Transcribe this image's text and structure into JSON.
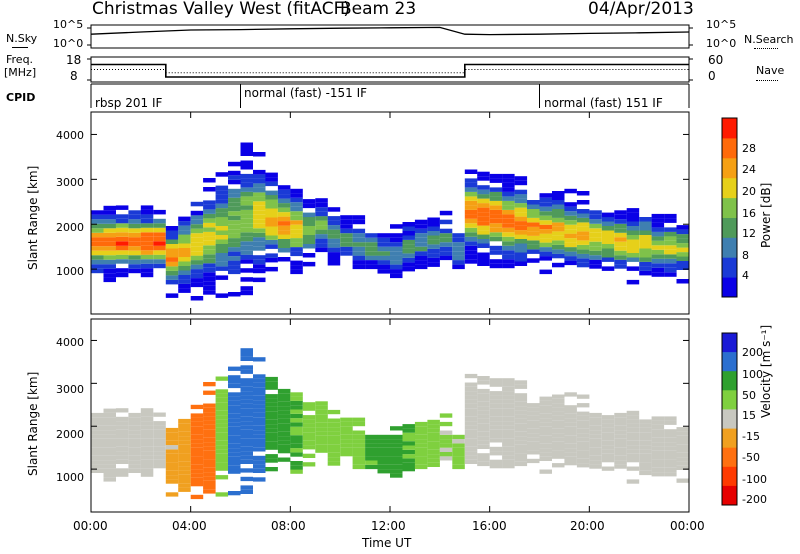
{
  "header": {
    "station": "Christmas Valley West (fitACF)",
    "beam": "Beam 23",
    "date": "04/Apr/2013"
  },
  "top_panels": {
    "noise_label_left": "N.Sky",
    "noise_label_right": "N.Search",
    "noise_ticks_left": [
      "10^5",
      "10^0"
    ],
    "noise_ticks_right": [
      "10^5",
      "10^0"
    ],
    "freq_label_line1": "Freq.",
    "freq_label_line2": "[MHz]",
    "freq_ticks": [
      "18",
      "8"
    ],
    "nave_label": "Nave",
    "nave_ticks": [
      "60",
      "0"
    ],
    "cpid_label": "CPID",
    "cpid_segments": [
      {
        "label": "rbsp 201 IF",
        "start_hour": 0,
        "end_hour": 6
      },
      {
        "label": "normal (fast) -151 IF",
        "start_hour": 6,
        "end_hour": 18
      },
      {
        "label": "normal (fast) 151 IF",
        "start_hour": 18,
        "end_hour": 24
      }
    ]
  },
  "panels": {
    "ylabel": "Slant Range [km]",
    "xlabel": "Time UT",
    "yticks": [
      "1000",
      "2000",
      "3000",
      "4000"
    ],
    "xticks": [
      "00:00",
      "04:00",
      "08:00",
      "12:00",
      "16:00",
      "20:00",
      "00:00"
    ],
    "power_label": "Power [dB]",
    "power_ticks": [
      "4",
      "8",
      "12",
      "16",
      "20",
      "24",
      "28"
    ],
    "velocity_label": "Velocity [m s⁻¹]",
    "velocity_ticks": [
      "200",
      "100",
      "50",
      "15",
      "-15",
      "-50",
      "-100",
      "-200"
    ]
  },
  "colors": {
    "power": [
      "#0a00e6",
      "#1a3ad6",
      "#3f7fb0",
      "#4f9a5a",
      "#7fc24a",
      "#e6d01a",
      "#f5a014",
      "#ff6a0a",
      "#ff1a00"
    ],
    "velocity": [
      "#1a1ad6",
      "#2b6fcf",
      "#2fa02f",
      "#7fd03f",
      "#c8c8c0",
      "#f0a020",
      "#ff7010",
      "#ff3a00",
      "#e60000"
    ]
  },
  "chart_data": [
    {
      "type": "line",
      "title": "",
      "xlabel": "",
      "ylabel": "N.Sky / N.Search",
      "x_range_hours": [
        0,
        24
      ],
      "yscale": "log",
      "ylim": [
        1,
        100000
      ],
      "series": [
        {
          "name": "N.Sky",
          "x": [
            0,
            2,
            4,
            6,
            8,
            10,
            12,
            14,
            15,
            16,
            18,
            20,
            22,
            24
          ],
          "values": [
            1000,
            3000,
            8000,
            10000,
            15000,
            20000,
            25000,
            30000,
            1000,
            800,
            1000,
            1500,
            2000,
            3000
          ]
        }
      ]
    },
    {
      "type": "line",
      "title": "",
      "xlabel": "",
      "ylabel": "Freq. [MHz]",
      "x_range_hours": [
        0,
        24
      ],
      "ylim": [
        8,
        18
      ],
      "series": [
        {
          "name": "Freq.",
          "x": [
            0,
            3,
            3,
            15,
            15,
            24
          ],
          "values": [
            15,
            15,
            10,
            10,
            15,
            15
          ]
        },
        {
          "name": "Nave",
          "x": [
            0,
            3,
            3,
            15,
            15,
            24
          ],
          "values": [
            30,
            30,
            22,
            22,
            30,
            30
          ]
        }
      ]
    },
    {
      "type": "heatmap",
      "title": "",
      "xlabel": "",
      "ylabel": "Slant Range [km]",
      "colorbar_label": "Power [dB]",
      "x_range_hours": [
        0,
        24
      ],
      "ylim": [
        0,
        4500
      ],
      "color_range": [
        0,
        32
      ],
      "x": [
        0.0,
        0.5,
        1.0,
        1.5,
        2.0,
        2.5,
        3.0,
        3.5,
        4.0,
        4.5,
        5.0,
        5.5,
        6.0,
        6.5,
        7.0,
        7.5,
        8.0,
        8.5,
        9.0,
        9.5,
        10.0,
        10.5,
        11.0,
        11.5,
        12.0,
        12.5,
        13.0,
        13.5,
        14.0,
        14.5,
        15.0,
        15.5,
        16.0,
        16.5,
        17.0,
        17.5,
        18.0,
        18.5,
        19.0,
        19.5,
        20.0,
        20.5,
        21.0,
        21.5,
        22.0,
        22.5,
        23.0,
        23.5
      ],
      "band_center_km": [
        1550,
        1550,
        1560,
        1550,
        1560,
        1560,
        1200,
        1350,
        1500,
        1650,
        1800,
        1950,
        2100,
        2150,
        2050,
        1950,
        1850,
        1800,
        1900,
        1700,
        1600,
        1500,
        1400,
        1300,
        1300,
        1450,
        1500,
        1550,
        1600,
        1400,
        2200,
        2150,
        2100,
        2000,
        1950,
        1900,
        1850,
        1800,
        1750,
        1700,
        1650,
        1600,
        1550,
        1500,
        1500,
        1450,
        1450,
        1400
      ],
      "band_peak_db": [
        28,
        28,
        28,
        28,
        28,
        28,
        26,
        22,
        20,
        20,
        18,
        16,
        16,
        20,
        22,
        24,
        22,
        16,
        14,
        12,
        12,
        12,
        12,
        10,
        10,
        12,
        12,
        12,
        12,
        10,
        26,
        28,
        28,
        26,
        26,
        24,
        24,
        22,
        22,
        22,
        20,
        20,
        20,
        20,
        20,
        18,
        18,
        18
      ],
      "band_halfwidth_km": [
        350,
        350,
        350,
        350,
        350,
        350,
        350,
        450,
        500,
        550,
        600,
        650,
        700,
        600,
        500,
        450,
        400,
        350,
        300,
        300,
        250,
        250,
        250,
        250,
        250,
        250,
        250,
        250,
        250,
        250,
        450,
        450,
        450,
        450,
        450,
        400,
        400,
        400,
        400,
        400,
        350,
        350,
        350,
        350,
        350,
        300,
        300,
        300
      ]
    },
    {
      "type": "heatmap",
      "title": "",
      "xlabel": "Time UT",
      "ylabel": "Slant Range [km]",
      "colorbar_label": "Velocity [m s⁻¹]",
      "x_range_hours": [
        0,
        24
      ],
      "ylim": [
        0,
        4500
      ],
      "color_range": [
        -200,
        200
      ],
      "x": [
        0.0,
        0.5,
        1.0,
        1.5,
        2.0,
        2.5,
        3.0,
        3.5,
        4.0,
        4.5,
        5.0,
        5.5,
        6.0,
        6.5,
        7.0,
        7.5,
        8.0,
        8.5,
        9.0,
        9.5,
        10.0,
        10.5,
        11.0,
        11.5,
        12.0,
        12.5,
        13.0,
        13.5,
        14.0,
        14.5,
        15.0,
        15.5,
        16.0,
        16.5,
        17.0,
        17.5,
        18.0,
        18.5,
        19.0,
        19.5,
        20.0,
        20.5,
        21.0,
        21.5,
        22.0,
        22.5,
        23.0,
        23.5
      ],
      "band_center_km": [
        1550,
        1550,
        1560,
        1550,
        1560,
        1560,
        1200,
        1350,
        1500,
        1650,
        1800,
        1950,
        2100,
        2150,
        2050,
        1950,
        1850,
        1800,
        1900,
        1700,
        1600,
        1500,
        1400,
        1300,
        1300,
        1450,
        1500,
        1550,
        1600,
        1400,
        2200,
        2150,
        2100,
        2000,
        1950,
        1900,
        1850,
        1800,
        1750,
        1700,
        1650,
        1600,
        1550,
        1500,
        1500,
        1450,
        1450,
        1400
      ],
      "band_velocity_ms": [
        0,
        0,
        0,
        0,
        0,
        0,
        -20,
        -40,
        -60,
        -80,
        40,
        120,
        180,
        120,
        80,
        60,
        50,
        40,
        30,
        30,
        40,
        40,
        50,
        60,
        60,
        50,
        40,
        30,
        20,
        20,
        0,
        0,
        0,
        0,
        0,
        0,
        0,
        0,
        0,
        0,
        0,
        0,
        0,
        0,
        0,
        0,
        0,
        0
      ],
      "band_halfwidth_km": [
        350,
        350,
        350,
        350,
        350,
        350,
        350,
        450,
        500,
        550,
        600,
        650,
        700,
        600,
        500,
        450,
        400,
        350,
        300,
        300,
        250,
        250,
        250,
        250,
        250,
        250,
        250,
        250,
        250,
        250,
        450,
        450,
        450,
        450,
        450,
        400,
        400,
        400,
        400,
        400,
        350,
        350,
        350,
        350,
        350,
        300,
        300,
        300
      ]
    }
  ]
}
